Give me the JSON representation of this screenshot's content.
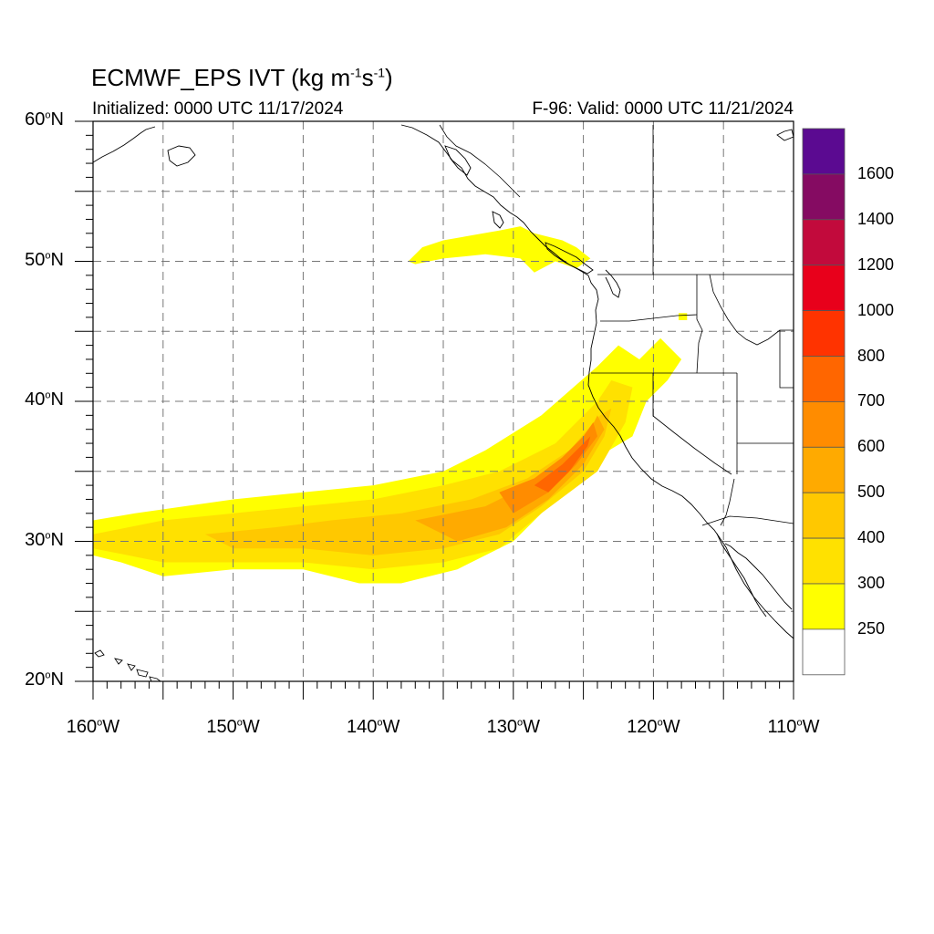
{
  "title": {
    "prefix": "ECMWF_EPS IVT (kg m",
    "exp1": "-1",
    "mid": "s",
    "exp2": "-1",
    "suffix": ")"
  },
  "initialized": "Initialized: 0000 UTC 11/17/2024",
  "valid": "F-96: Valid: 0000 UTC 11/21/2024",
  "axes": {
    "lat_labels": [
      {
        "value": "60",
        "suffix": "N"
      },
      {
        "value": "50",
        "suffix": "N"
      },
      {
        "value": "40",
        "suffix": "N"
      },
      {
        "value": "30",
        "suffix": "N"
      },
      {
        "value": "20",
        "suffix": "N"
      }
    ],
    "lon_labels": [
      {
        "value": "160",
        "suffix": "W"
      },
      {
        "value": "150",
        "suffix": "W"
      },
      {
        "value": "140",
        "suffix": "W"
      },
      {
        "value": "130",
        "suffix": "W"
      },
      {
        "value": "120",
        "suffix": "W"
      },
      {
        "value": "110",
        "suffix": "W"
      }
    ],
    "degree_symbol": "o"
  },
  "colorbar": {
    "labels": [
      "1600",
      "1400",
      "1200",
      "1000",
      "800",
      "700",
      "600",
      "500",
      "400",
      "300",
      "250"
    ],
    "colors": [
      "#5b0a91",
      "#850b62",
      "#c20a3c",
      "#e8001b",
      "#ff3300",
      "#ff6600",
      "#ff8c00",
      "#ffaa00",
      "#ffc800",
      "#ffe100",
      "#ffff00",
      "#ffffff"
    ]
  },
  "chart_data": {
    "type": "heatmap",
    "variable": "IVT",
    "extent": {
      "lon": [
        -160,
        -110
      ],
      "lat": [
        20,
        60
      ]
    },
    "grid_interval_deg": 5,
    "label_interval_deg": 10,
    "levels": [
      250,
      300,
      400,
      500,
      600,
      700,
      800,
      1000,
      1200,
      1400,
      1600
    ],
    "features": [
      {
        "kind": "atmospheric-river",
        "level": 250,
        "polygon": [
          [
            -160,
            31.5
          ],
          [
            -157,
            32
          ],
          [
            -150,
            33
          ],
          [
            -145,
            33.5
          ],
          [
            -140,
            34
          ],
          [
            -135,
            35
          ],
          [
            -132,
            36.5
          ],
          [
            -128,
            39
          ],
          [
            -124,
            42.5
          ],
          [
            -122.5,
            44
          ],
          [
            -121,
            43
          ],
          [
            -119.5,
            44.5
          ],
          [
            -118,
            43
          ],
          [
            -119,
            41.5
          ],
          [
            -120.5,
            40
          ],
          [
            -121.5,
            37.5
          ],
          [
            -124,
            36
          ],
          [
            -127,
            33
          ],
          [
            -130,
            30
          ],
          [
            -134,
            28
          ],
          [
            -138,
            27
          ],
          [
            -141,
            27
          ],
          [
            -145,
            28
          ],
          [
            -150,
            28
          ],
          [
            -155,
            27.5
          ],
          [
            -158,
            28.5
          ],
          [
            -160,
            29
          ]
        ]
      },
      {
        "kind": "atmospheric-river",
        "level": 300,
        "polygon": [
          [
            -160,
            30.5
          ],
          [
            -155,
            31.5
          ],
          [
            -150,
            32
          ],
          [
            -145,
            32.5
          ],
          [
            -140,
            33
          ],
          [
            -135,
            34
          ],
          [
            -131,
            35
          ],
          [
            -127,
            37
          ],
          [
            -124,
            40
          ],
          [
            -123,
            41.5
          ],
          [
            -121.5,
            41
          ],
          [
            -122,
            38.5
          ],
          [
            -124,
            35
          ],
          [
            -128,
            32
          ],
          [
            -131,
            29.5
          ],
          [
            -135,
            28.5
          ],
          [
            -140,
            28
          ],
          [
            -145,
            28.5
          ],
          [
            -150,
            28.5
          ],
          [
            -155,
            28.5
          ],
          [
            -160,
            29.5
          ]
        ]
      },
      {
        "kind": "atmospheric-river",
        "level": 400,
        "polygon": [
          [
            -152,
            30.5
          ],
          [
            -147,
            31
          ],
          [
            -143,
            31.5
          ],
          [
            -138,
            32
          ],
          [
            -133,
            33
          ],
          [
            -129,
            34.5
          ],
          [
            -126,
            36.5
          ],
          [
            -123.8,
            39
          ],
          [
            -123,
            39.5
          ],
          [
            -123.5,
            37.5
          ],
          [
            -125,
            35
          ],
          [
            -128,
            32.5
          ],
          [
            -131,
            30.5
          ],
          [
            -135,
            29.5
          ],
          [
            -140,
            29
          ],
          [
            -145,
            29.5
          ],
          [
            -150,
            29.5
          ]
        ]
      },
      {
        "kind": "atmospheric-river",
        "level": 500,
        "polygon": [
          [
            -137,
            31.5
          ],
          [
            -132,
            32.5
          ],
          [
            -129,
            34
          ],
          [
            -126.5,
            36
          ],
          [
            -124.5,
            38
          ],
          [
            -124,
            39
          ],
          [
            -123.5,
            38
          ],
          [
            -125,
            35.5
          ],
          [
            -127.5,
            33
          ],
          [
            -130.5,
            31
          ],
          [
            -134,
            30
          ]
        ]
      },
      {
        "kind": "atmospheric-river",
        "level": 600,
        "polygon": [
          [
            -131,
            33.5
          ],
          [
            -128.5,
            34.5
          ],
          [
            -126.5,
            36
          ],
          [
            -125,
            37.5
          ],
          [
            -124.3,
            38.5
          ],
          [
            -124,
            37.5
          ],
          [
            -125.5,
            35.5
          ],
          [
            -127.5,
            33.5
          ],
          [
            -130,
            32
          ]
        ]
      },
      {
        "kind": "atmospheric-river",
        "level": 700,
        "polygon": [
          [
            -128.5,
            34
          ],
          [
            -126.5,
            35.5
          ],
          [
            -125,
            37
          ],
          [
            -124.5,
            37.5
          ],
          [
            -124.7,
            36.8
          ],
          [
            -126,
            35
          ],
          [
            -127.5,
            33.5
          ]
        ]
      },
      {
        "kind": "moisture-plume",
        "level": 250,
        "polygon": [
          [
            -137.5,
            50
          ],
          [
            -136.5,
            51
          ],
          [
            -135,
            51.5
          ],
          [
            -131,
            52.2
          ],
          [
            -129.5,
            52.5
          ],
          [
            -128.5,
            52
          ],
          [
            -126.5,
            51.5
          ],
          [
            -125.5,
            51
          ],
          [
            -124.5,
            50.2
          ],
          [
            -125.5,
            49.5
          ],
          [
            -127,
            50
          ],
          [
            -128.5,
            49.2
          ],
          [
            -129.5,
            50.2
          ],
          [
            -132,
            50.5
          ],
          [
            -135,
            50.2
          ],
          [
            -137,
            49.8
          ]
        ]
      },
      {
        "kind": "isolated-cell",
        "level": 250,
        "polygon": [
          [
            -118.2,
            46.3
          ],
          [
            -117.6,
            46.3
          ],
          [
            -117.6,
            45.8
          ],
          [
            -118.2,
            45.8
          ]
        ]
      }
    ]
  }
}
